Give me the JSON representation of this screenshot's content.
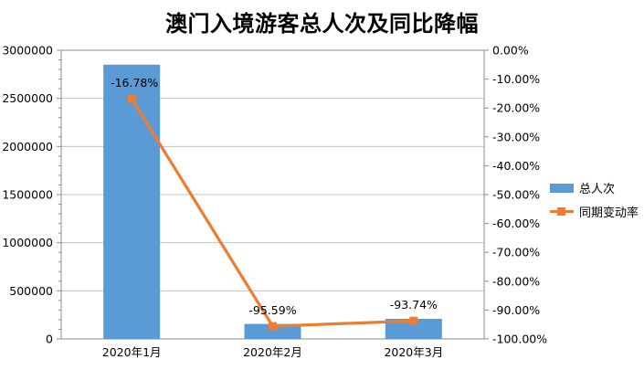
{
  "title": "澳门入境游客总人次及同比降幅",
  "legend": {
    "items": [
      {
        "label": "总人次"
      },
      {
        "label": "同期变动率"
      }
    ]
  },
  "colors": {
    "bar": "#5B9BD5",
    "line": "#ED7D31",
    "grid": "#C3C3C3",
    "axis": "#8C8C8C",
    "text": "#000000",
    "background": "#FFFFFF"
  },
  "chart_data": {
    "type": "combo-bar-line",
    "title": "澳门入境游客总人次及同比降幅",
    "categories": [
      "2020年1月",
      "2020年2月",
      "2020年3月"
    ],
    "series": [
      {
        "name": "总人次",
        "type": "bar",
        "axis": "left",
        "color": "#5B9BD5",
        "values": [
          2850000,
          156000,
          209000
        ]
      },
      {
        "name": "同期变动率",
        "type": "line",
        "axis": "right",
        "color": "#ED7D31",
        "values": [
          -16.78,
          -95.59,
          -93.74
        ],
        "point_labels": [
          "-16.78%",
          "-95.59%",
          "-93.74%"
        ]
      }
    ],
    "left_axis": {
      "min": 0,
      "max": 3000000,
      "major_step": 500000,
      "minor_step": 100000,
      "tick_labels": [
        "3000000",
        "2500000",
        "2000000",
        "1500000",
        "1000000",
        "500000",
        "0"
      ]
    },
    "right_axis": {
      "min": -100,
      "max": 0,
      "major_step": 10,
      "tick_labels": [
        "0.00%",
        "-10.00%",
        "-20.00%",
        "-30.00%",
        "-40.00%",
        "-50.00%",
        "-60.00%",
        "-70.00%",
        "-80.00%",
        "-90.00%",
        "-100.00%"
      ]
    },
    "grid": true,
    "legend_position": "right"
  }
}
